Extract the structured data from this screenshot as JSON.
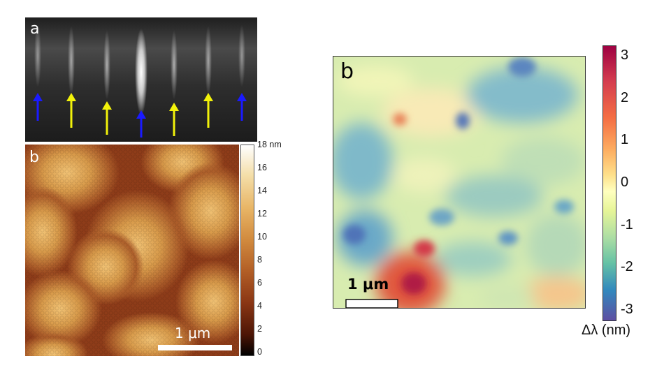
{
  "panel_a": {
    "label": "a",
    "arrow_colors": [
      "#1a1aff",
      "#f2f20a",
      "#f2f20a",
      "#1a1aff",
      "#f2f20a",
      "#f2f20a",
      "#1a1aff"
    ]
  },
  "panel_b_afm": {
    "label": "b",
    "scalebar_label": "1 μm",
    "colorbar_ticks": [
      "18 nm",
      "16",
      "14",
      "12",
      "10",
      "8",
      "6",
      "4",
      "2",
      "0"
    ]
  },
  "panel_b_map": {
    "label": "b",
    "scalebar_label": "1 μm",
    "colorbar_ticks": [
      "3",
      "2",
      "1",
      "0",
      "-1",
      "-2",
      "-3"
    ],
    "colorbar_label": "Δλ (nm)"
  }
}
